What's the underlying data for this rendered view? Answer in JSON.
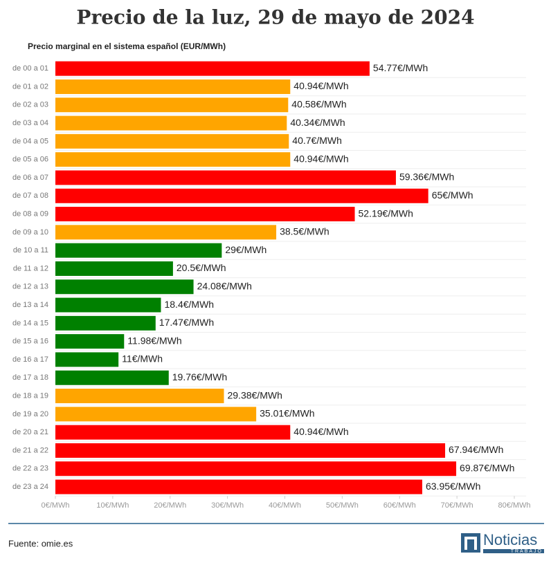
{
  "chart_data": {
    "type": "bar",
    "orientation": "horizontal",
    "title": "Precio de la luz, 29 de mayo de 2024",
    "subtitle": "Precio marginal en el sistema español (EUR/MWh)",
    "categories": [
      "de 00 a 01",
      "de 01 a 02",
      "de 02 a 03",
      "de 03 a 04",
      "de 04 a 05",
      "de 05 a 06",
      "de 06 a 07",
      "de 07 a 08",
      "de 08 a 09",
      "de 09 a 10",
      "de 10 a 11",
      "de 11 a 12",
      "de 12 a 13",
      "de 13 a 14",
      "de 14 a 15",
      "de 15 a 16",
      "de 16 a 17",
      "de 17 a 18",
      "de 18 a 19",
      "de 19 a 20",
      "de 20 a 21",
      "de 21 a 22",
      "de 22 a 23",
      "de 23 a 24"
    ],
    "values": [
      54.77,
      40.94,
      40.58,
      40.34,
      40.7,
      40.94,
      59.36,
      65,
      52.19,
      38.5,
      29,
      20.5,
      24.08,
      18.4,
      17.47,
      11.98,
      11,
      19.76,
      29.38,
      35.01,
      40.94,
      67.94,
      69.87,
      63.95
    ],
    "value_labels": [
      "54.77€/MWh",
      "40.94€/MWh",
      "40.58€/MWh",
      "40.34€/MWh",
      "40.7€/MWh",
      "40.94€/MWh",
      "59.36€/MWh",
      "65€/MWh",
      "52.19€/MWh",
      "38.5€/MWh",
      "29€/MWh",
      "20.5€/MWh",
      "24.08€/MWh",
      "18.4€/MWh",
      "17.47€/MWh",
      "11.98€/MWh",
      "11€/MWh",
      "19.76€/MWh",
      "29.38€/MWh",
      "35.01€/MWh",
      "40.94€/MWh",
      "67.94€/MWh",
      "69.87€/MWh",
      "63.95€/MWh"
    ],
    "colors": [
      "#ff0000",
      "#ffa500",
      "#ffa500",
      "#ffa500",
      "#ffa500",
      "#ffa500",
      "#ff0000",
      "#ff0000",
      "#ff0000",
      "#ffa500",
      "#008000",
      "#008000",
      "#008000",
      "#008000",
      "#008000",
      "#008000",
      "#008000",
      "#008000",
      "#ffa500",
      "#ffa500",
      "#ff0000",
      "#ff0000",
      "#ff0000",
      "#ff0000"
    ],
    "xlim": [
      0,
      80
    ],
    "xticks": [
      {
        "value": 0,
        "label": "0€/MWh"
      },
      {
        "value": 10,
        "label": "10€/MWh"
      },
      {
        "value": 20,
        "label": "20€/MWh"
      },
      {
        "value": 30,
        "label": "30€/MWh"
      },
      {
        "value": 40,
        "label": "40€/MWh"
      },
      {
        "value": 50,
        "label": "50€/MWh"
      },
      {
        "value": 60,
        "label": "60€/MWh"
      },
      {
        "value": 70,
        "label": "70€/MWh"
      },
      {
        "value": 80,
        "label": "80€/MWh"
      }
    ],
    "source": "Fuente: omie.es",
    "logo": {
      "name": "Noticias",
      "tagline": "TRABAJO"
    }
  }
}
